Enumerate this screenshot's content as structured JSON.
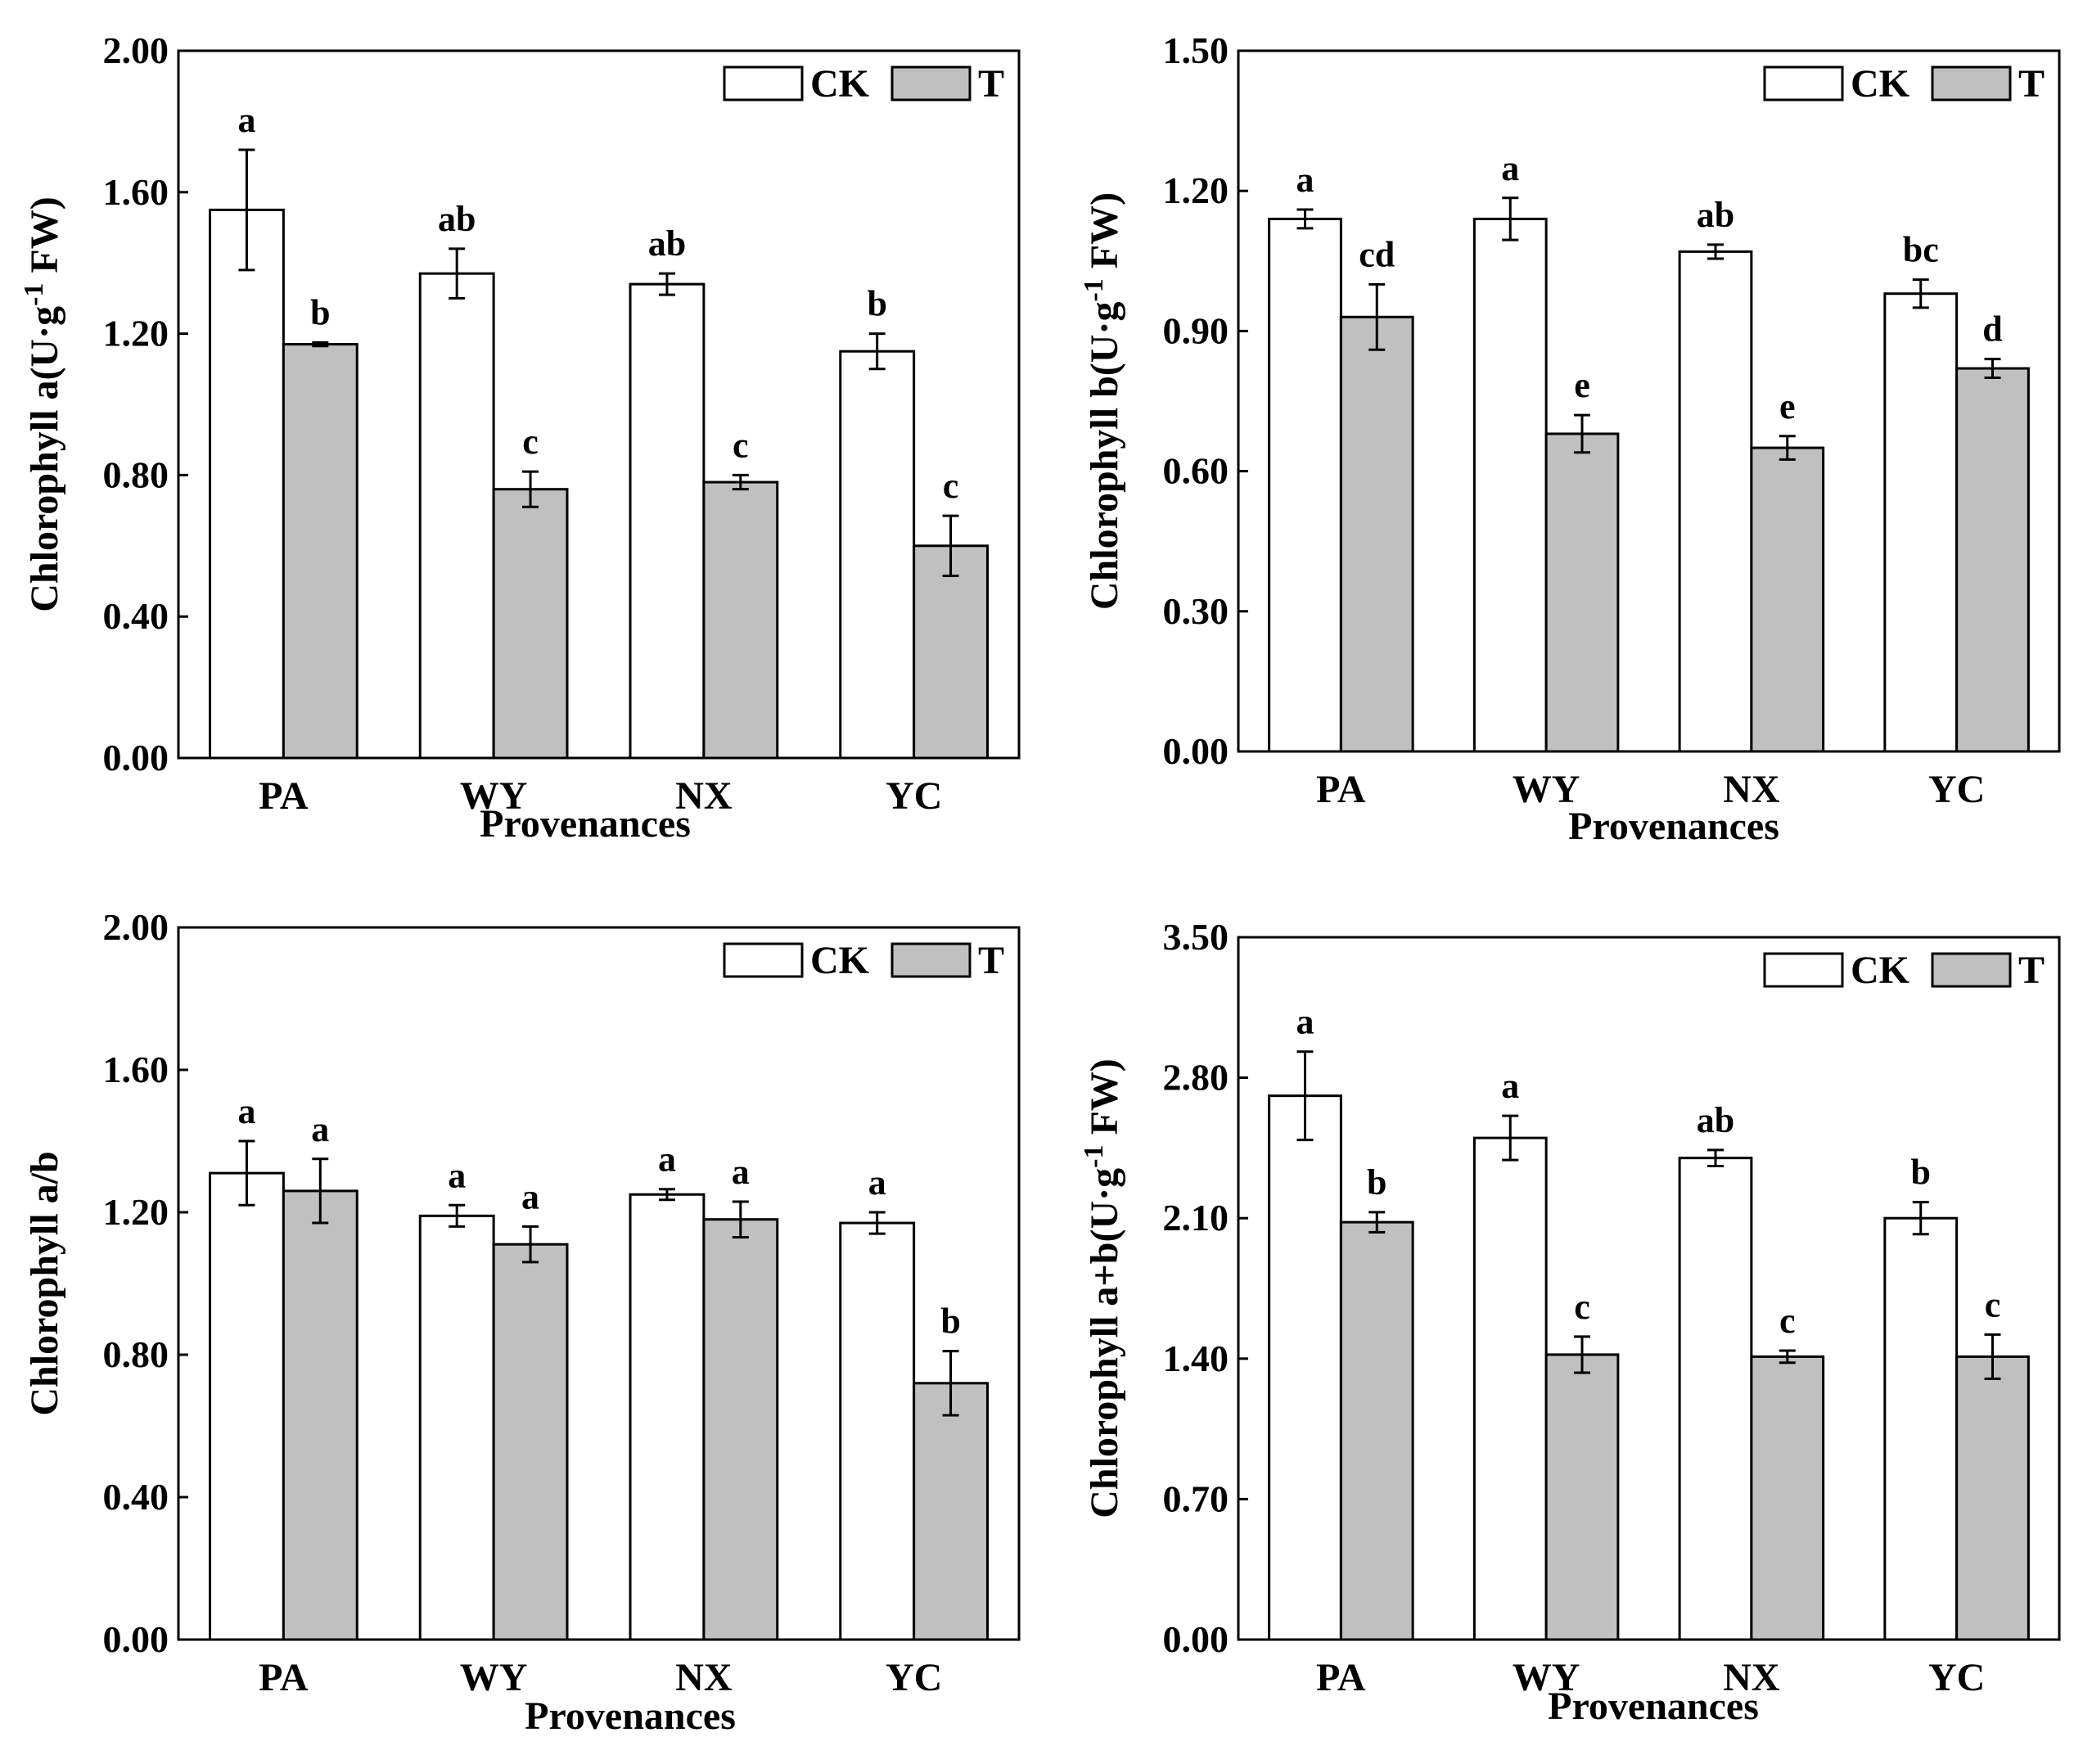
{
  "figure": {
    "colors": {
      "ck_fill": "#ffffff",
      "t_fill": "#c0c0c0",
      "stroke": "#000000"
    }
  },
  "chart_data": [
    {
      "type": "bar",
      "panel": "top-left",
      "title": "",
      "xlabel": "Provenances",
      "ylabel": "Chlorophyll a(U·g-1 FW)",
      "ylabel_parts": [
        "Chlorophyll a(U·g",
        "-1",
        " FW)"
      ],
      "ylim": [
        0,
        2.0
      ],
      "yticks": [
        "0.00",
        "0.40",
        "0.80",
        "1.20",
        "1.60",
        "2.00"
      ],
      "categories": [
        "PA",
        "WY",
        "NX",
        "YC"
      ],
      "legend": {
        "position": "top-right",
        "entries": [
          "CK",
          "T"
        ]
      },
      "series": [
        {
          "name": "CK",
          "values": [
            1.55,
            1.37,
            1.34,
            1.15
          ],
          "errors": [
            0.17,
            0.07,
            0.03,
            0.05
          ],
          "letters": [
            "a",
            "ab",
            "ab",
            "b"
          ]
        },
        {
          "name": "T",
          "values": [
            1.17,
            0.76,
            0.78,
            0.6
          ],
          "errors": [
            0.005,
            0.05,
            0.02,
            0.085
          ],
          "letters": [
            "b",
            "c",
            "c",
            "c"
          ]
        }
      ]
    },
    {
      "type": "bar",
      "panel": "top-right",
      "title": "",
      "xlabel": "Provenances",
      "ylabel": "Chlorophyll b(U·g-1 FW)",
      "ylabel_parts": [
        "Chlorophyll b(U·g",
        "-1",
        " FW)"
      ],
      "ylim": [
        0,
        1.5
      ],
      "yticks": [
        "0.00",
        "0.30",
        "0.60",
        "0.90",
        "1.20",
        "1.50"
      ],
      "categories": [
        "PA",
        "WY",
        "NX",
        "YC"
      ],
      "legend": {
        "position": "top-right",
        "entries": [
          "CK",
          "T"
        ]
      },
      "series": [
        {
          "name": "CK",
          "values": [
            1.14,
            1.14,
            1.07,
            0.98
          ],
          "errors": [
            0.02,
            0.045,
            0.015,
            0.03
          ],
          "letters": [
            "a",
            "a",
            "ab",
            "bc"
          ]
        },
        {
          "name": "T",
          "values": [
            0.93,
            0.68,
            0.65,
            0.82
          ],
          "errors": [
            0.07,
            0.04,
            0.025,
            0.02
          ],
          "letters": [
            "cd",
            "e",
            "e",
            "d"
          ]
        }
      ]
    },
    {
      "type": "bar",
      "panel": "bottom-left",
      "title": "",
      "xlabel": "Provenances",
      "ylabel": "Chlorophyll a/b",
      "ylabel_parts": [
        "Chlorophyll a/b",
        "",
        ""
      ],
      "ylim": [
        0,
        2.0
      ],
      "yticks": [
        "0.00",
        "0.40",
        "0.80",
        "1.20",
        "1.60",
        "2.00"
      ],
      "categories": [
        "PA",
        "WY",
        "NX",
        "YC"
      ],
      "legend": {
        "position": "top-right",
        "entries": [
          "CK",
          "T"
        ]
      },
      "series": [
        {
          "name": "CK",
          "values": [
            1.31,
            1.19,
            1.25,
            1.17
          ],
          "errors": [
            0.09,
            0.03,
            0.015,
            0.03
          ],
          "letters": [
            "a",
            "a",
            "a",
            "a"
          ]
        },
        {
          "name": "T",
          "values": [
            1.26,
            1.11,
            1.18,
            0.72
          ],
          "errors": [
            0.09,
            0.05,
            0.05,
            0.09
          ],
          "letters": [
            "a",
            "a",
            "a",
            "b"
          ]
        }
      ]
    },
    {
      "type": "bar",
      "panel": "bottom-right",
      "title": "",
      "xlabel": "Provenances",
      "ylabel": "Chlorophyll a+b(U·g-1 FW)",
      "ylabel_parts": [
        "Chlorophyll a+b(U·g",
        "-1",
        " FW)"
      ],
      "ylim": [
        0,
        3.5
      ],
      "yticks": [
        "0.00",
        "0.70",
        "1.40",
        "2.10",
        "2.80",
        "3.50"
      ],
      "categories": [
        "PA",
        "WY",
        "NX",
        "YC"
      ],
      "legend": {
        "position": "top-right",
        "entries": [
          "CK",
          "T"
        ]
      },
      "series": [
        {
          "name": "CK",
          "values": [
            2.71,
            2.5,
            2.4,
            2.1
          ],
          "errors": [
            0.22,
            0.11,
            0.04,
            0.08
          ],
          "letters": [
            "a",
            "a",
            "ab",
            "b"
          ]
        },
        {
          "name": "T",
          "values": [
            2.08,
            1.42,
            1.41,
            1.41
          ],
          "errors": [
            0.05,
            0.09,
            0.03,
            0.11
          ],
          "letters": [
            "b",
            "c",
            "c",
            "c"
          ]
        }
      ]
    }
  ]
}
